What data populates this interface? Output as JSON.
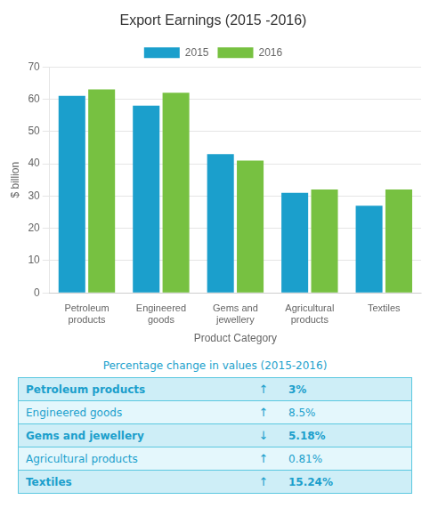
{
  "chart_data": [
    {
      "type": "bar",
      "title": "Export Earnings (2015 -2016)",
      "categories": [
        "Petroleum\nproducts",
        "Engineered\ngoods",
        "Gems and\njewellery",
        "Agricultural\nproducts",
        "Textiles"
      ],
      "series": [
        {
          "name": "2015",
          "color": "#1b9fcc",
          "values": [
            61,
            58,
            43,
            31,
            27
          ]
        },
        {
          "name": "2016",
          "color": "#77c141",
          "values": [
            63,
            62,
            41,
            32,
            32
          ]
        }
      ],
      "ylabel": "$ billion",
      "xlabel": "Product Category",
      "ylim": [
        0,
        70
      ],
      "yticks": [
        0,
        10,
        20,
        30,
        40,
        50,
        60,
        70
      ],
      "grid": true,
      "legend": "top"
    },
    {
      "type": "table",
      "title": "Percentage change in values (2015-2016)",
      "categories": [
        "Petroleum products",
        "Engineered goods",
        "Gems and jewellery",
        "Agricultural products",
        "Textiles"
      ],
      "annotations": [
        "↑",
        "↑",
        "↓",
        "↑",
        "↑"
      ],
      "values": [
        3,
        8.5,
        5.18,
        0.81,
        15.24
      ],
      "value_labels": [
        "3%",
        "8.5%",
        "5.18%",
        "0.81%",
        "15.24%"
      ],
      "color": "#1b9fcc",
      "colors": [
        "#ceeef7",
        "#e4f7fc",
        "#ceeef7",
        "#e4f7fc",
        "#ceeef7"
      ]
    }
  ]
}
